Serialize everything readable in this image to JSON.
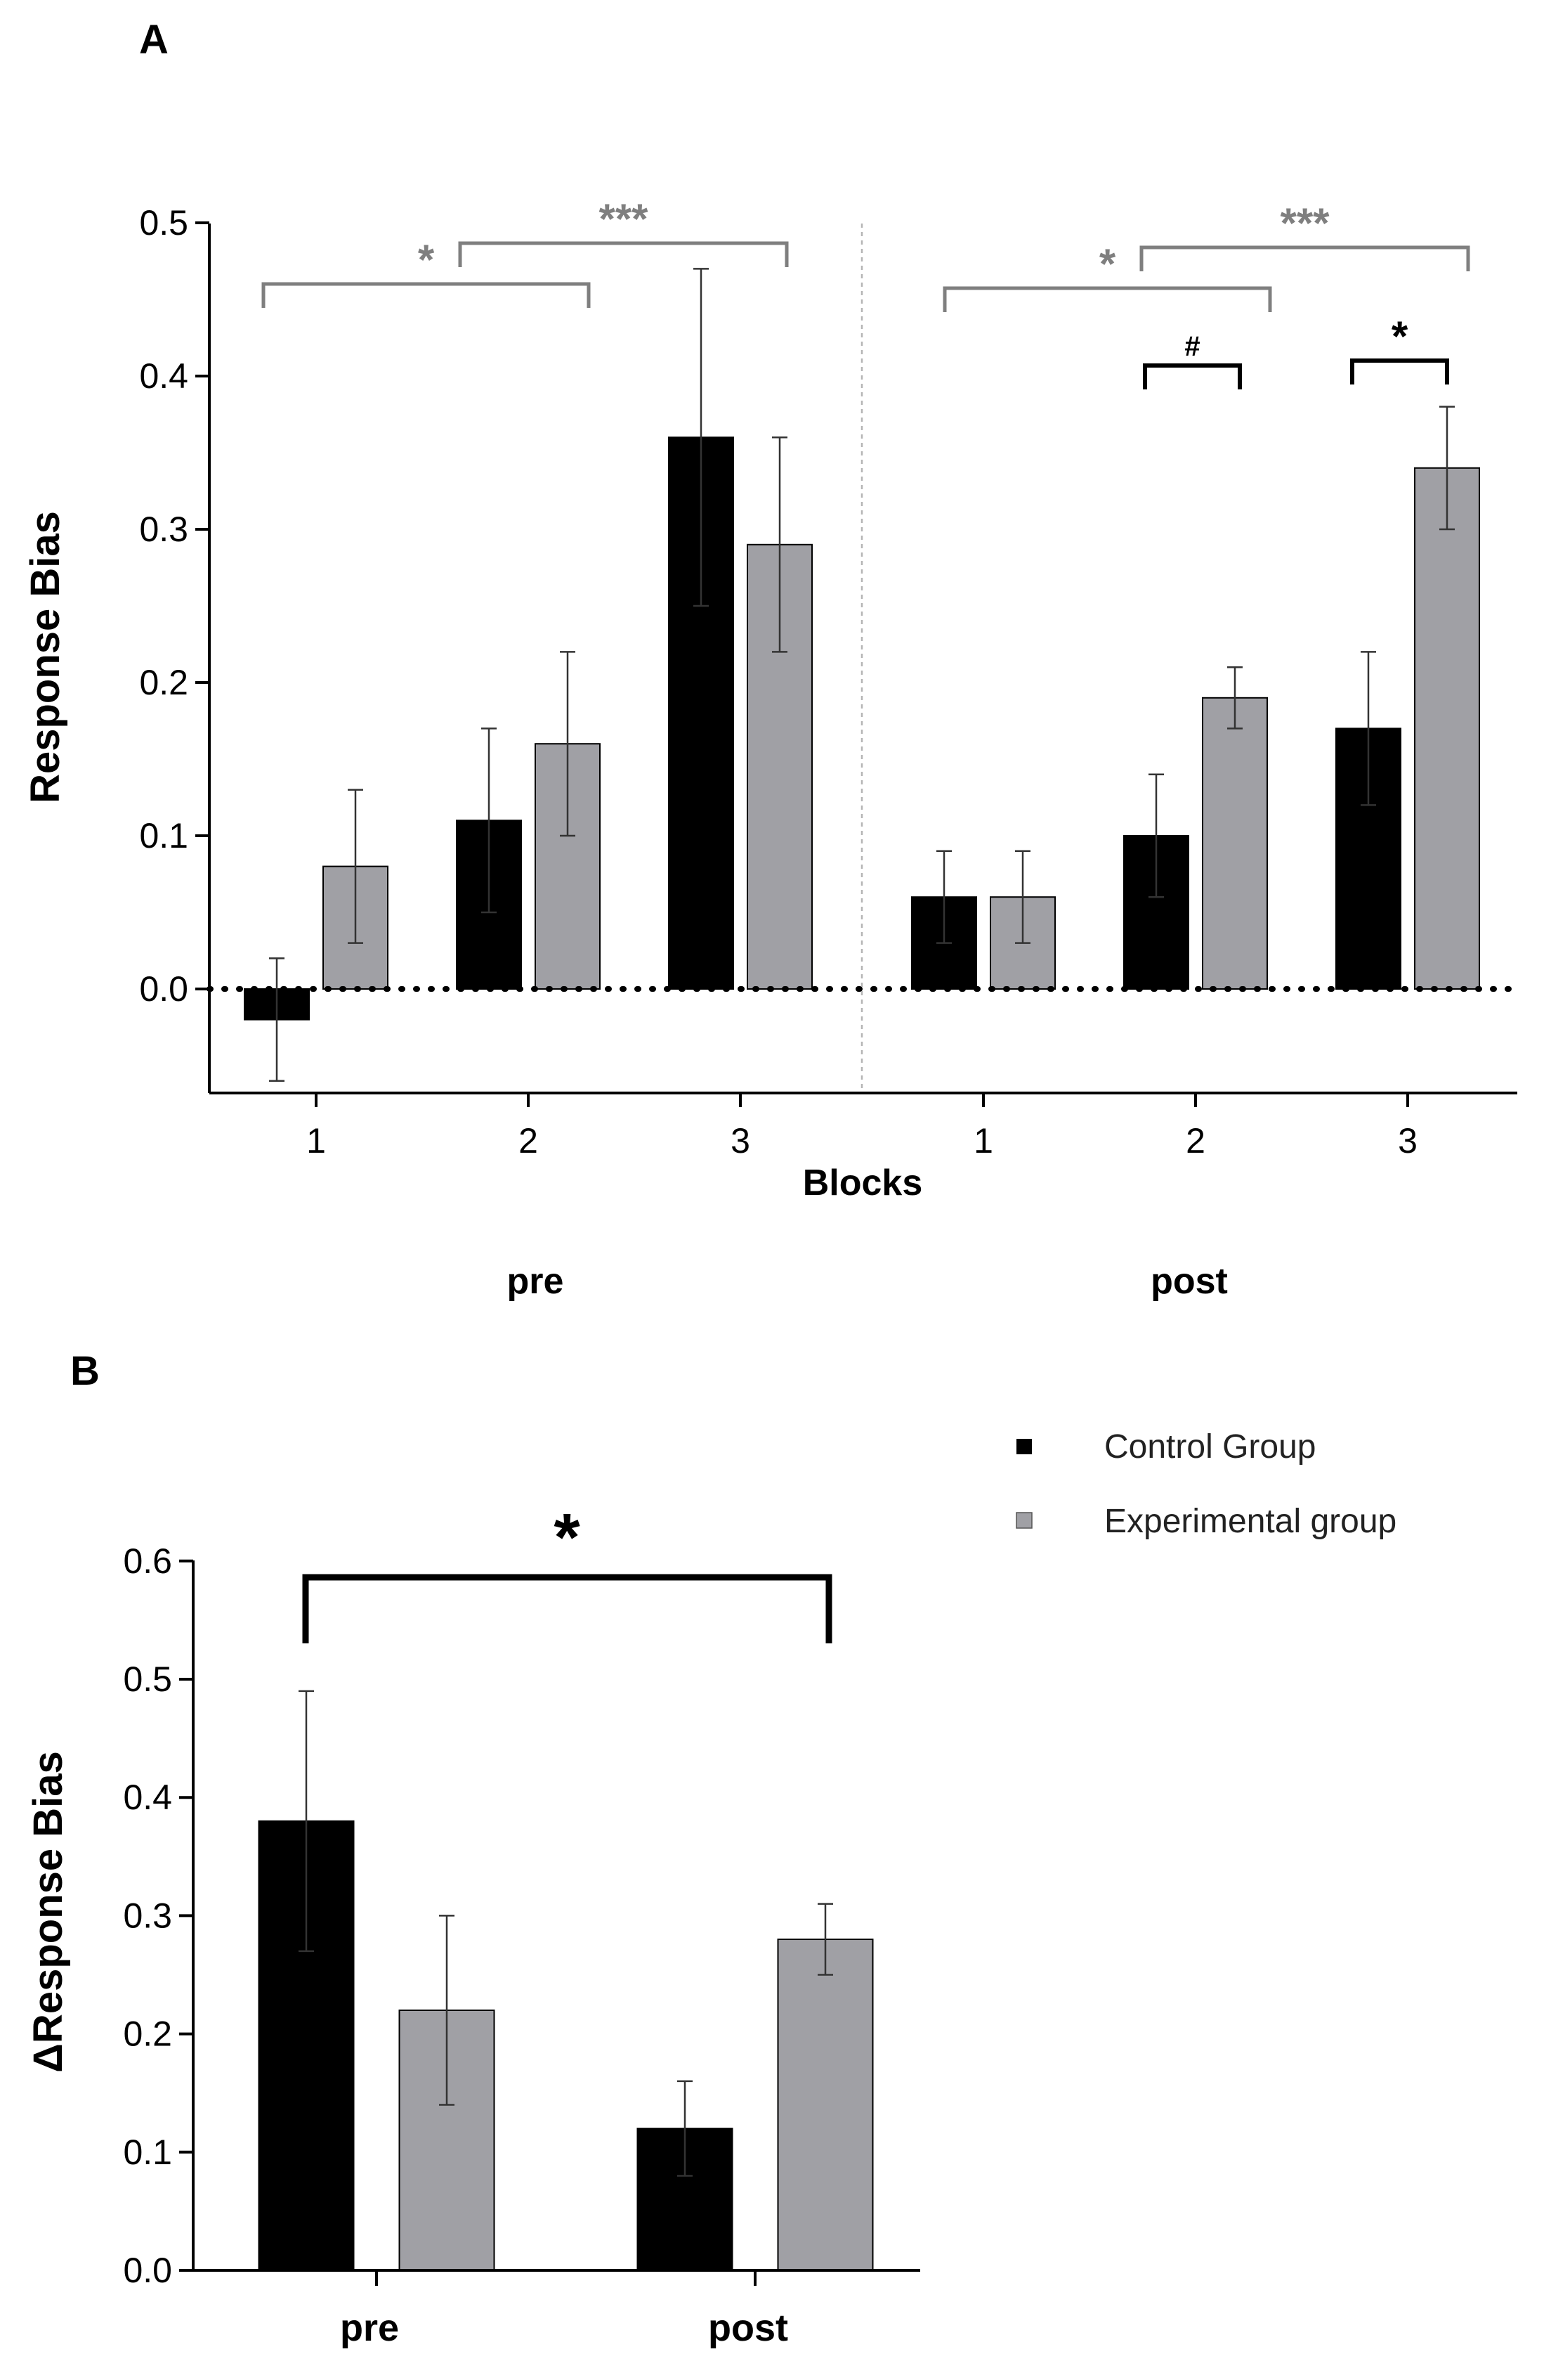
{
  "legend": {
    "items": [
      {
        "label": "Control Group",
        "color": "#000000"
      },
      {
        "label": "Experimental group",
        "color": "#a0a0a5"
      }
    ]
  },
  "chart_data": [
    {
      "panel": "A",
      "type": "bar",
      "ylabel": "Response Bias",
      "xlabel": "Blocks",
      "ylim": [
        -0.07,
        0.5
      ],
      "yticks": [
        0.0,
        0.1,
        0.2,
        0.3,
        0.4,
        0.5
      ],
      "ytick_labels": [
        "0.0",
        "0.1",
        "0.2",
        "0.3",
        "0.4",
        "0.5"
      ],
      "zero_line": "dotted",
      "groups": [
        {
          "name": "pre",
          "categories": [
            "1",
            "2",
            "3"
          ]
        },
        {
          "name": "post",
          "categories": [
            "1",
            "2",
            "3"
          ]
        }
      ],
      "series": [
        {
          "name": "Control Group",
          "color": "#000000",
          "values": [
            -0.02,
            0.11,
            0.36,
            0.06,
            0.1,
            0.17
          ],
          "err_low": [
            -0.06,
            0.05,
            0.25,
            0.03,
            0.06,
            0.12
          ],
          "err_high": [
            0.02,
            0.17,
            0.47,
            0.09,
            0.14,
            0.22
          ]
        },
        {
          "name": "Experimental group",
          "color": "#a0a0a5",
          "values": [
            0.08,
            0.16,
            0.29,
            0.06,
            0.19,
            0.34
          ],
          "err_low": [
            0.03,
            0.1,
            0.22,
            0.03,
            0.17,
            0.3
          ],
          "err_high": [
            0.13,
            0.22,
            0.36,
            0.09,
            0.21,
            0.38
          ]
        }
      ],
      "annotations": [
        {
          "label": "*",
          "from": "pre-1",
          "to": "pre-2",
          "color": "#7f7f7f"
        },
        {
          "label": "***",
          "from": "pre-2",
          "to": "pre-3",
          "color": "#7f7f7f"
        },
        {
          "label": "*",
          "from": "post-1",
          "to": "post-2",
          "color": "#7f7f7f"
        },
        {
          "label": "***",
          "from": "post-2",
          "to": "post-3",
          "color": "#7f7f7f"
        },
        {
          "label": "#",
          "from": "post-2 control",
          "to": "post-2 experimental",
          "color": "#000000"
        },
        {
          "label": "*",
          "from": "post-3 control",
          "to": "post-3 experimental",
          "color": "#000000"
        }
      ]
    },
    {
      "panel": "B",
      "type": "bar",
      "ylabel": "ΔResponse Bias",
      "ylim": [
        0.0,
        0.6
      ],
      "yticks": [
        0.0,
        0.1,
        0.2,
        0.3,
        0.4,
        0.5,
        0.6
      ],
      "ytick_labels": [
        "0.0",
        "0.1",
        "0.2",
        "0.3",
        "0.4",
        "0.5",
        "0.6"
      ],
      "categories": [
        "pre",
        "post"
      ],
      "series": [
        {
          "name": "Control Group",
          "color": "#000000",
          "values": [
            0.38,
            0.12
          ],
          "err_low": [
            0.27,
            0.08
          ],
          "err_high": [
            0.49,
            0.16
          ]
        },
        {
          "name": "Experimental group",
          "color": "#a0a0a5",
          "values": [
            0.22,
            0.28
          ],
          "err_low": [
            0.14,
            0.25
          ],
          "err_high": [
            0.3,
            0.31
          ]
        }
      ],
      "annotations": [
        {
          "label": "*",
          "from": "pre",
          "to": "post",
          "color": "#000000"
        }
      ]
    }
  ]
}
